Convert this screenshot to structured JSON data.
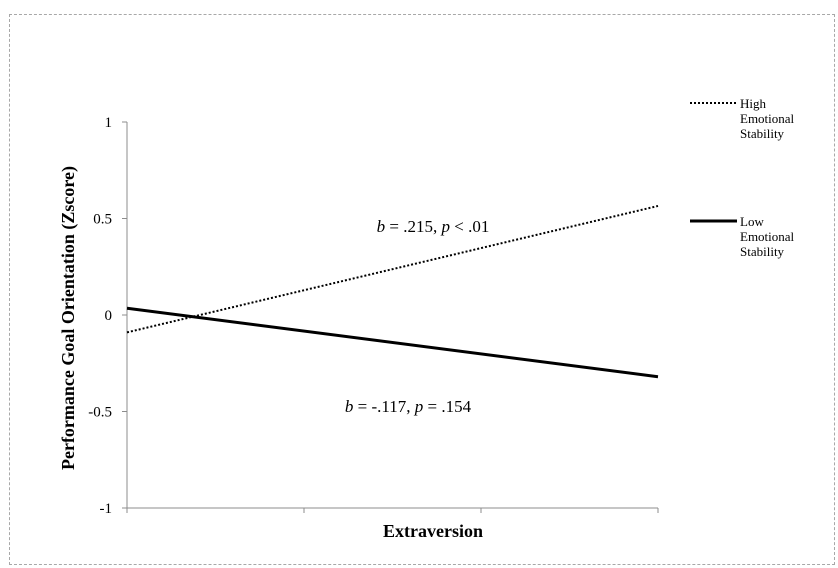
{
  "chart_data": {
    "type": "line",
    "xlabel": "Extraversion",
    "ylabel": "Performance Goal Orientation (Zscore)",
    "ylim": [
      -1,
      1
    ],
    "yticks": [
      "1",
      "0.5",
      "0",
      "-0.5",
      "-1"
    ],
    "ytick_values": [
      1,
      0.5,
      0,
      -0.5,
      -1
    ],
    "x_categories": 3,
    "grid": false,
    "legend_position": "right",
    "series": [
      {
        "name": "High Emotional Stability",
        "legend_lines": [
          "High",
          "Emotional",
          "Stability"
        ],
        "style": "dotted",
        "color": "#000000",
        "x": [
          0,
          3
        ],
        "values": [
          -0.09,
          0.565
        ]
      },
      {
        "name": "Low Emotional Stability",
        "legend_lines": [
          "Low",
          "Emotional",
          "Stability"
        ],
        "style": "solid",
        "color": "#000000",
        "x": [
          0,
          3
        ],
        "values": [
          0.035,
          -0.32
        ]
      }
    ],
    "annotations": [
      {
        "series": 0,
        "parts": [
          [
            "b",
            "italic"
          ],
          [
            " = .215, ",
            "normal"
          ],
          [
            "p",
            "italic"
          ],
          [
            " < .01",
            "normal"
          ]
        ]
      },
      {
        "series": 1,
        "parts": [
          [
            "b",
            "italic"
          ],
          [
            " = -.117, ",
            "normal"
          ],
          [
            "p",
            "italic"
          ],
          [
            " = .154",
            "normal"
          ]
        ]
      }
    ]
  }
}
